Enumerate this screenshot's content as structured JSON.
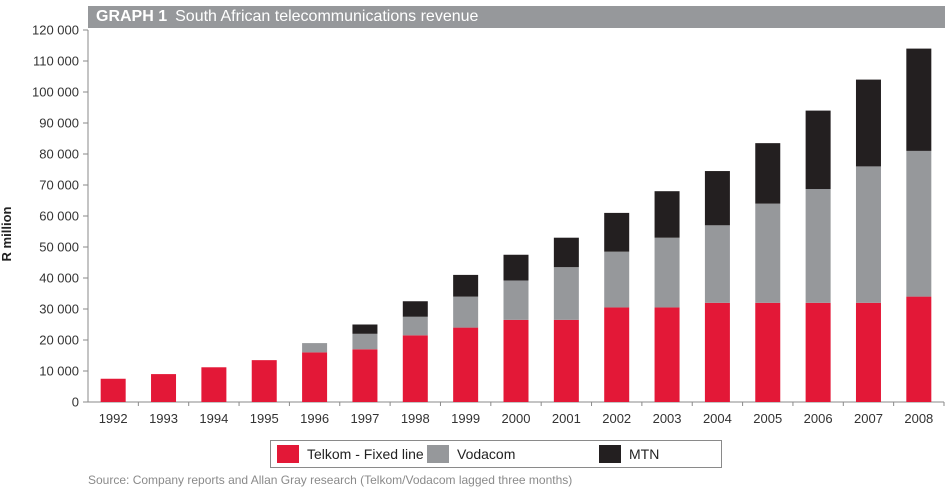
{
  "header": {
    "graph_number": "GRAPH 1",
    "title": "South African telecommunications revenue"
  },
  "chart_data": {
    "type": "bar",
    "stacked": true,
    "title": "South African telecommunications revenue",
    "ylabel": "R million",
    "xlabel": "",
    "ylim": [
      0,
      120000
    ],
    "yticks": [
      0,
      10000,
      20000,
      30000,
      40000,
      50000,
      60000,
      70000,
      80000,
      90000,
      100000,
      110000,
      120000
    ],
    "ytick_labels": [
      "0",
      "10 000",
      "20 000",
      "30 000",
      "40 000",
      "50 000",
      "60 000",
      "70 000",
      "80 000",
      "90 000",
      "100 000",
      "110 000",
      "120 000"
    ],
    "categories": [
      "1992",
      "1993",
      "1994",
      "1995",
      "1996",
      "1997",
      "1998",
      "1999",
      "2000",
      "2001",
      "2002",
      "2003",
      "2004",
      "2005",
      "2006",
      "2007",
      "2008"
    ],
    "series": [
      {
        "name": "Telkom - Fixed line",
        "color": "#e31837",
        "values": [
          7500,
          9000,
          11200,
          13500,
          16000,
          17000,
          21500,
          24000,
          26500,
          26500,
          30500,
          30500,
          32000,
          32000,
          32000,
          32000,
          34000
        ]
      },
      {
        "name": "Vodacom",
        "color": "#96989b",
        "values": [
          0,
          0,
          0,
          0,
          3000,
          5000,
          6000,
          10000,
          12700,
          17000,
          18000,
          22500,
          25000,
          32000,
          36700,
          44000,
          47000
        ]
      },
      {
        "name": "MTN",
        "color": "#231f20",
        "values": [
          0,
          0,
          0,
          0,
          0,
          3000,
          5000,
          7000,
          8300,
          9500,
          12500,
          15000,
          17500,
          19500,
          25300,
          28000,
          33000
        ]
      }
    ],
    "grid": false,
    "legend_position": "bottom"
  },
  "source": "Source: Company reports and Allan Gray research (Telkom/Vodacom lagged three months)"
}
